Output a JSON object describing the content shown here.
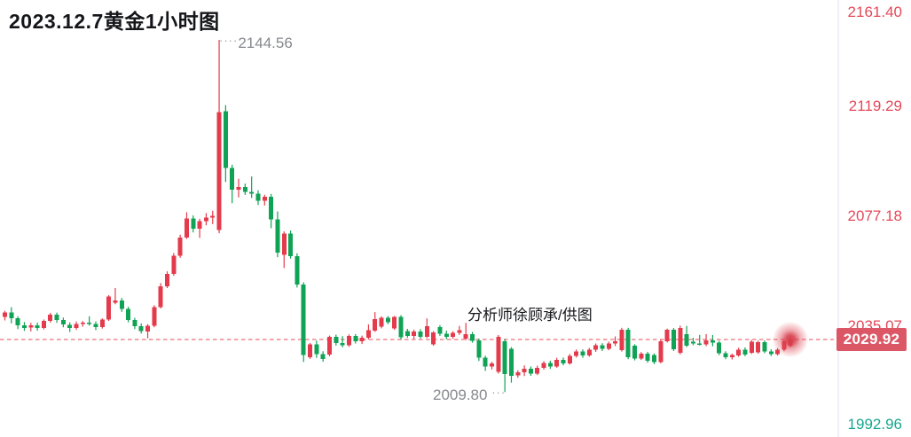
{
  "title": "2023.12.7黄金1小时图",
  "credit": "分析师徐顾承/供图",
  "annotations": {
    "high": {
      "leader": "····",
      "text": "2144.56"
    },
    "low": {
      "text": "2009.80",
      "leader": "···"
    }
  },
  "current_price": {
    "label": "2029.92",
    "value": 2029.92
  },
  "price_axis": {
    "labels": [
      {
        "text": "2161.40",
        "value": 2161.4,
        "color": "#e5495a"
      },
      {
        "text": "2119.29",
        "value": 2119.29,
        "color": "#e5495a"
      },
      {
        "text": "2077.18",
        "value": 2077.18,
        "color": "#e5495a"
      },
      {
        "text": "2035.07",
        "value": 2035.07,
        "color": "#e5495a"
      },
      {
        "text": "1992.96",
        "value": 1992.96,
        "color": "#17a78f"
      }
    ]
  },
  "colors": {
    "up": "#e43b4c",
    "down": "#10a356",
    "dash_line": "#f0868e",
    "badge_bg": "#dc5766",
    "badge_text": "#ffffff",
    "glow": "#d63e4b",
    "annotation_gray": "#87898f",
    "separator": "#eef0f5",
    "title_text": "#15161a"
  },
  "chart_data": {
    "type": "candlestick",
    "title": "2023.12.7黄金1小时图",
    "instrument": "黄金 (Gold)",
    "timeframe": "1小时",
    "date": "2023.12.7",
    "high": 2144.56,
    "low": 2009.8,
    "last": 2029.92,
    "up_means": "red (Chinese convention: red=up, green=down)",
    "y_axis_ticks": [
      2161.4,
      2119.29,
      2077.18,
      2035.07,
      1992.96
    ],
    "ylim": [
      1988.0,
      2166.0
    ],
    "grid": false,
    "legend": false,
    "candles_ohlc": [
      [
        2038.6,
        2040.9,
        2037.2,
        2040.2
      ],
      [
        2040.2,
        2042.3,
        2036.1,
        2038.0
      ],
      [
        2038.0,
        2038.8,
        2033.9,
        2035.3
      ],
      [
        2035.3,
        2036.6,
        2033.2,
        2034.4
      ],
      [
        2034.4,
        2036.3,
        2033.0,
        2035.4
      ],
      [
        2035.4,
        2036.4,
        2033.3,
        2034.3
      ],
      [
        2034.3,
        2037.6,
        2033.8,
        2037.0
      ],
      [
        2037.0,
        2040.1,
        2036.4,
        2039.5
      ],
      [
        2039.5,
        2040.2,
        2036.3,
        2037.4
      ],
      [
        2037.4,
        2038.3,
        2034.6,
        2035.6
      ],
      [
        2035.6,
        2036.5,
        2032.8,
        2034.3
      ],
      [
        2034.3,
        2036.8,
        2033.6,
        2035.8
      ],
      [
        2035.8,
        2037.0,
        2034.8,
        2036.4
      ],
      [
        2036.4,
        2038.8,
        2035.2,
        2035.9
      ],
      [
        2035.9,
        2036.8,
        2033.5,
        2034.7
      ],
      [
        2034.7,
        2038.0,
        2034.1,
        2037.5
      ],
      [
        2037.5,
        2046.9,
        2037.0,
        2046.3
      ],
      [
        2044.0,
        2049.6,
        2043.4,
        2044.8
      ],
      [
        2044.8,
        2045.8,
        2040.5,
        2041.6
      ],
      [
        2041.6,
        2042.4,
        2036.5,
        2037.4
      ],
      [
        2037.4,
        2038.2,
        2033.9,
        2035.0
      ],
      [
        2035.0,
        2036.1,
        2032.2,
        2033.2
      ],
      [
        2033.0,
        2035.8,
        2030.4,
        2035.2
      ],
      [
        2035.2,
        2043.0,
        2034.6,
        2042.3
      ],
      [
        2042.3,
        2051.5,
        2041.8,
        2050.3
      ],
      [
        2050.3,
        2056.0,
        2049.6,
        2055.0
      ],
      [
        2055.0,
        2063.0,
        2054.3,
        2062.0
      ],
      [
        2062.0,
        2070.0,
        2061.2,
        2069.0
      ],
      [
        2069.0,
        2078.6,
        2068.4,
        2076.3
      ],
      [
        2076.3,
        2077.4,
        2070.9,
        2072.4
      ],
      [
        2072.4,
        2076.1,
        2068.8,
        2075.2
      ],
      [
        2075.2,
        2078.3,
        2073.6,
        2076.6
      ],
      [
        2076.6,
        2079.2,
        2074.1,
        2077.2
      ],
      [
        2071.8,
        2144.56,
        2070.6,
        2116.9
      ],
      [
        2117.3,
        2119.6,
        2090.2,
        2095.5
      ],
      [
        2095.5,
        2096.8,
        2082.1,
        2087.2
      ],
      [
        2087.2,
        2091.4,
        2084.3,
        2088.3
      ],
      [
        2088.3,
        2089.6,
        2085.2,
        2086.4
      ],
      [
        2086.4,
        2092.3,
        2084.1,
        2085.8
      ],
      [
        2085.8,
        2087.0,
        2081.4,
        2083.0
      ],
      [
        2083.0,
        2085.3,
        2081.2,
        2084.6
      ],
      [
        2084.6,
        2085.6,
        2072.5,
        2075.8
      ],
      [
        2075.8,
        2078.9,
        2061.4,
        2063.1
      ],
      [
        2062.4,
        2071.3,
        2057.3,
        2070.5
      ],
      [
        2070.5,
        2071.6,
        2060.9,
        2061.8
      ],
      [
        2061.8,
        2062.9,
        2049.8,
        2050.9
      ],
      [
        2050.9,
        2051.8,
        2021.3,
        2024.0
      ],
      [
        2023.1,
        2028.6,
        2022.5,
        2028.0
      ],
      [
        2028.0,
        2029.5,
        2022.9,
        2024.3
      ],
      [
        2024.3,
        2025.4,
        2021.4,
        2022.4
      ],
      [
        2024.1,
        2031.4,
        2023.5,
        2030.9
      ],
      [
        2030.9,
        2031.8,
        2027.6,
        2028.5
      ],
      [
        2028.5,
        2031.2,
        2026.9,
        2027.7
      ],
      [
        2027.7,
        2031.9,
        2027.1,
        2031.2
      ],
      [
        2031.2,
        2032.0,
        2028.4,
        2029.3
      ],
      [
        2029.3,
        2031.4,
        2028.2,
        2030.6
      ],
      [
        2030.6,
        2035.7,
        2030.0,
        2033.4
      ],
      [
        2033.4,
        2040.4,
        2032.8,
        2037.8
      ],
      [
        2034.8,
        2038.8,
        2034.2,
        2038.3
      ],
      [
        2038.3,
        2038.9,
        2035.8,
        2036.5
      ],
      [
        2034.2,
        2038.9,
        2033.6,
        2038.6
      ],
      [
        2038.6,
        2039.2,
        2029.9,
        2030.7
      ],
      [
        2033.1,
        2034.0,
        2030.6,
        2031.3
      ],
      [
        2031.3,
        2033.7,
        2030.2,
        2033.0
      ],
      [
        2033.0,
        2033.9,
        2030.3,
        2031.0
      ],
      [
        2031.0,
        2038.0,
        2030.5,
        2035.0
      ],
      [
        2028.1,
        2033.1,
        2027.5,
        2032.7
      ],
      [
        2034.7,
        2035.4,
        2031.3,
        2032.1
      ],
      [
        2032.1,
        2033.3,
        2030.0,
        2030.9
      ],
      [
        2030.9,
        2033.1,
        2030.2,
        2032.5
      ],
      [
        2032.5,
        2035.1,
        2031.7,
        2033.4
      ],
      [
        2030.3,
        2036.3,
        2029.7,
        2032.0
      ],
      [
        2032.0,
        2032.8,
        2028.7,
        2029.5
      ],
      [
        2029.5,
        2030.3,
        2021.7,
        2022.9
      ],
      [
        2022.9,
        2023.7,
        2017.9,
        2019.5
      ],
      [
        2019.5,
        2021.4,
        2018.5,
        2020.8
      ],
      [
        2017.5,
        2031.6,
        2016.9,
        2031.0
      ],
      [
        2029.3,
        2030.1,
        2009.8,
        2016.6
      ],
      [
        2026.4,
        2027.0,
        2013.4,
        2016.1
      ],
      [
        2016.1,
        2018.1,
        2015.3,
        2017.4
      ],
      [
        2017.4,
        2020.0,
        2015.9,
        2018.8
      ],
      [
        2018.8,
        2019.6,
        2016.0,
        2016.9
      ],
      [
        2016.9,
        2019.9,
        2016.3,
        2019.1
      ],
      [
        2019.1,
        2021.6,
        2018.4,
        2021.0
      ],
      [
        2021.0,
        2021.8,
        2018.7,
        2019.6
      ],
      [
        2019.6,
        2022.9,
        2019.1,
        2022.2
      ],
      [
        2022.2,
        2023.0,
        2020.0,
        2020.8
      ],
      [
        2020.8,
        2024.4,
        2020.3,
        2023.7
      ],
      [
        2023.7,
        2026.1,
        2023.0,
        2025.3
      ],
      [
        2025.3,
        2026.2,
        2022.9,
        2023.8
      ],
      [
        2023.8,
        2026.7,
        2023.3,
        2026.0
      ],
      [
        2026.0,
        2028.4,
        2025.2,
        2027.7
      ],
      [
        2027.7,
        2028.5,
        2025.5,
        2026.3
      ],
      [
        2026.3,
        2029.1,
        2025.8,
        2028.4
      ],
      [
        2028.4,
        2031.1,
        2027.4,
        2029.3
      ],
      [
        2025.9,
        2034.4,
        2025.3,
        2033.7
      ],
      [
        2033.7,
        2034.4,
        2022.4,
        2023.1
      ],
      [
        2027.5,
        2028.1,
        2021.9,
        2022.7
      ],
      [
        2022.7,
        2025.1,
        2022.1,
        2024.5
      ],
      [
        2024.5,
        2025.2,
        2021.0,
        2021.8
      ],
      [
        2024.0,
        2024.6,
        2020.5,
        2021.3
      ],
      [
        2021.3,
        2029.9,
        2020.8,
        2029.3
      ],
      [
        2029.3,
        2034.1,
        2028.8,
        2033.6
      ],
      [
        2033.6,
        2034.3,
        2025.5,
        2026.2
      ],
      [
        2024.8,
        2035.2,
        2024.2,
        2034.4
      ],
      [
        2031.9,
        2035.1,
        2027.0,
        2027.6
      ],
      [
        2029.1,
        2030.6,
        2027.7,
        2028.4
      ],
      [
        2028.4,
        2031.7,
        2027.6,
        2028.1
      ],
      [
        2028.1,
        2032.0,
        2027.4,
        2029.5
      ],
      [
        2029.5,
        2031.6,
        2027.3,
        2028.7
      ],
      [
        2028.7,
        2029.4,
        2023.9,
        2024.7
      ],
      [
        2024.7,
        2025.4,
        2022.4,
        2023.1
      ],
      [
        2023.1,
        2024.5,
        2022.3,
        2023.9
      ],
      [
        2023.9,
        2026.8,
        2023.3,
        2026.1
      ],
      [
        2026.1,
        2026.9,
        2023.5,
        2024.2
      ],
      [
        2024.9,
        2029.7,
        2024.4,
        2029.1
      ],
      [
        2025.0,
        2029.5,
        2024.5,
        2028.9
      ],
      [
        2028.9,
        2029.6,
        2024.7,
        2025.4
      ],
      [
        2025.4,
        2026.2,
        2023.6,
        2024.3
      ],
      [
        2024.3,
        2026.6,
        2023.8,
        2026.0
      ],
      [
        2026.0,
        2029.9,
        2025.4,
        2029.3
      ],
      [
        2027.6,
        2031.0,
        2027.0,
        2029.92
      ]
    ]
  }
}
